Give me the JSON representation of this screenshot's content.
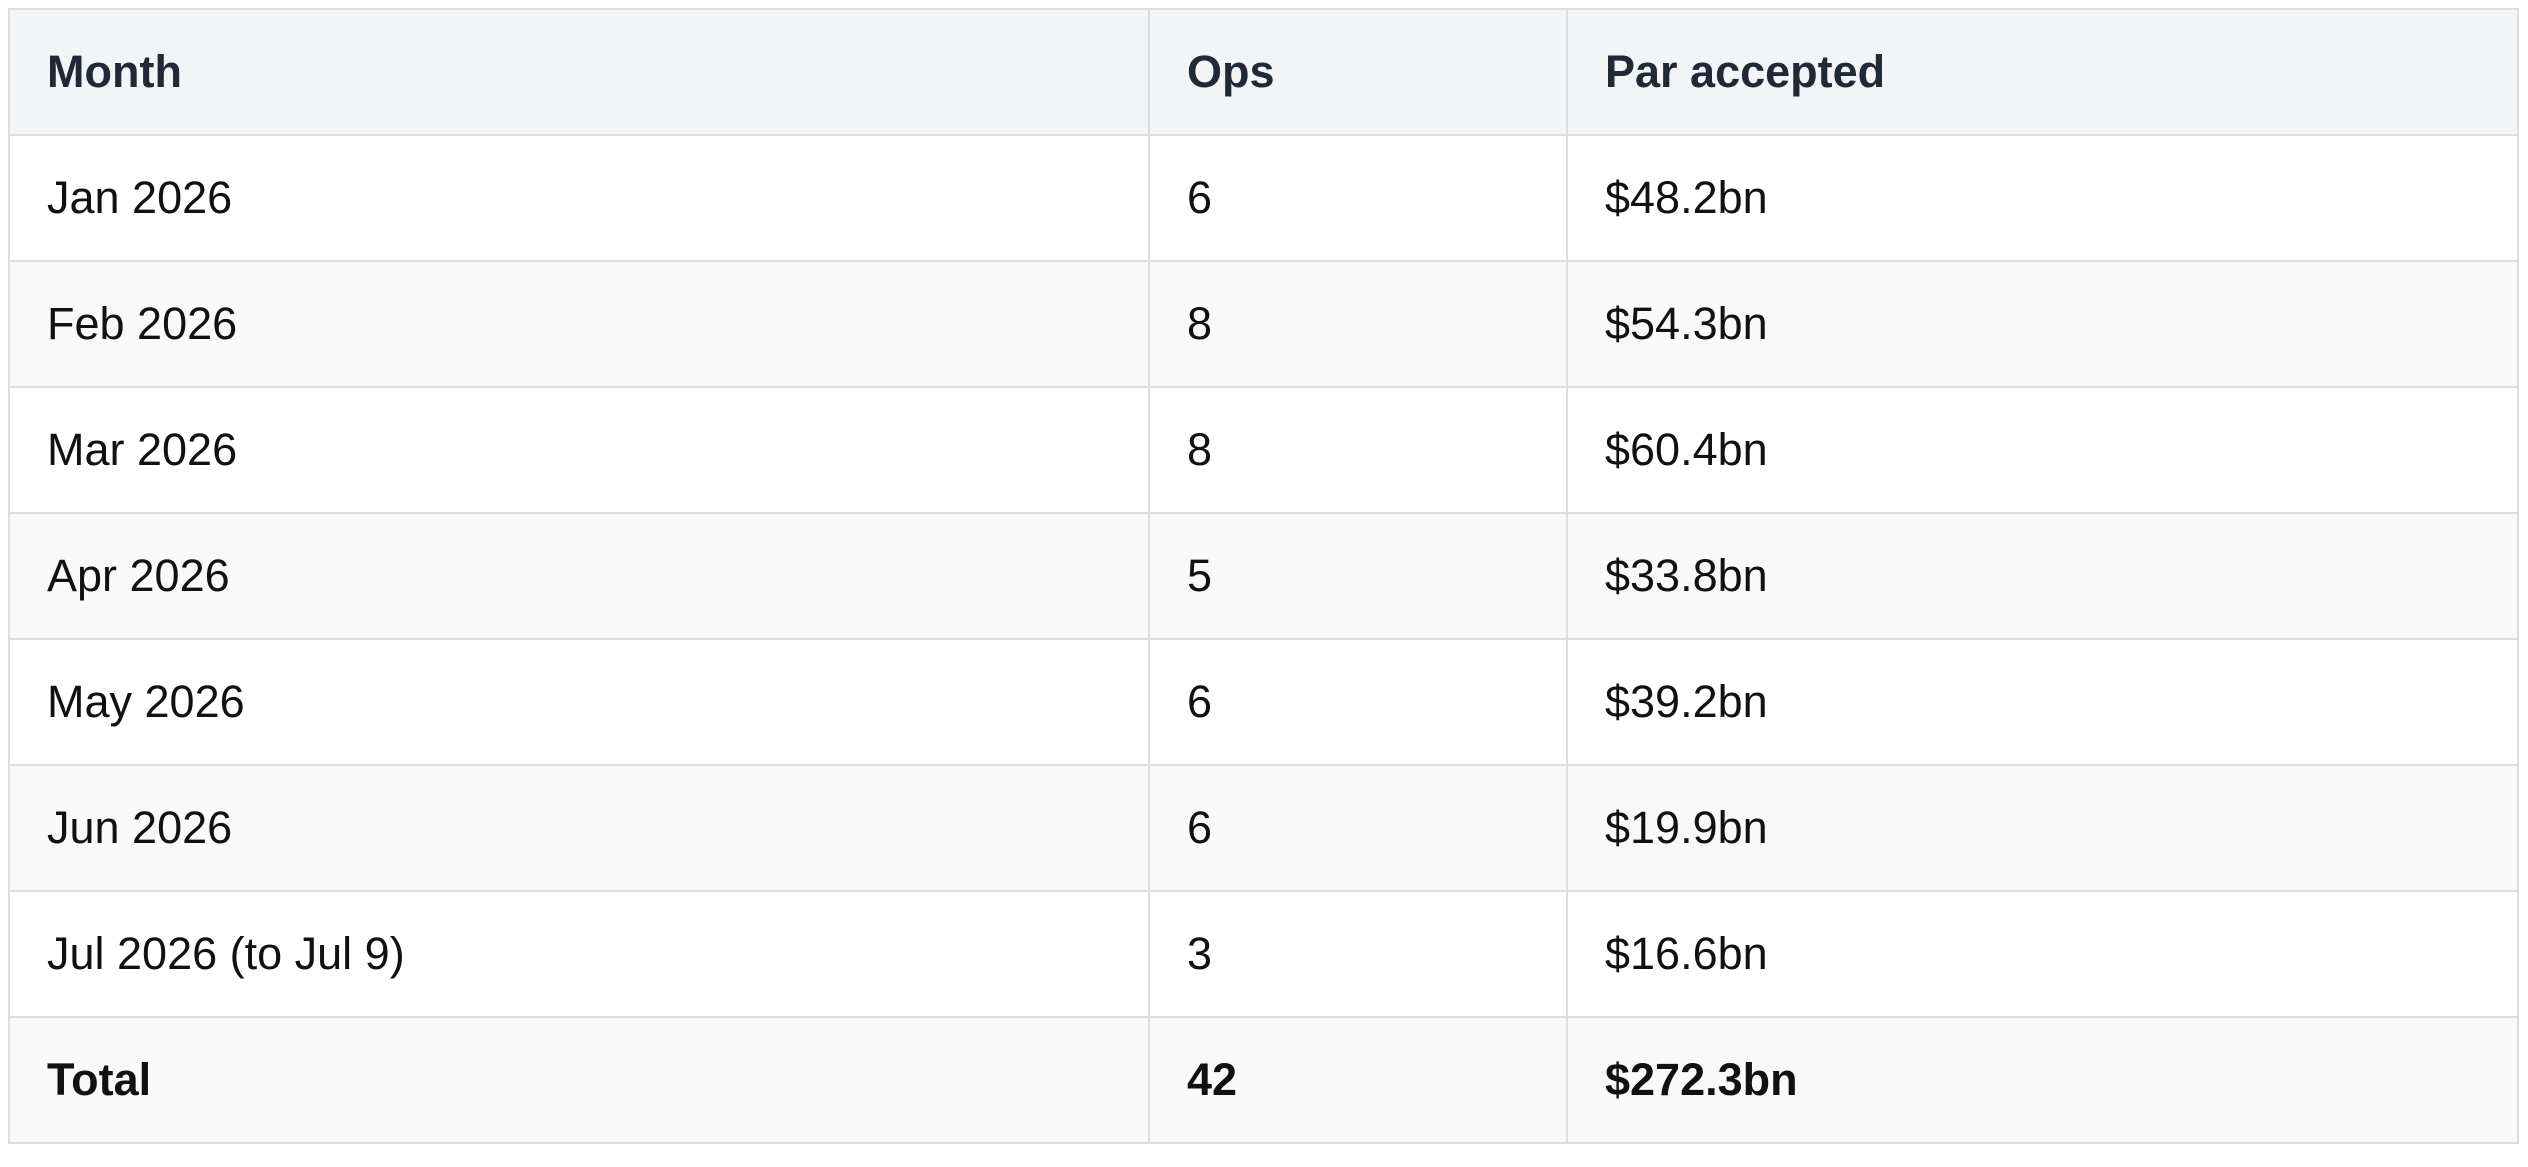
{
  "table": {
    "header": [
      "Month",
      "Ops",
      "Par accepted"
    ],
    "rows": [
      [
        "Jan 2026",
        "6",
        "$48.2bn"
      ],
      [
        "Feb 2026",
        "8",
        "$54.3bn"
      ],
      [
        "Mar 2026",
        "8",
        "$60.4bn"
      ],
      [
        "Apr 2026",
        "5",
        "$33.8bn"
      ],
      [
        "May 2026",
        "6",
        "$39.2bn"
      ],
      [
        "Jun 2026",
        "6",
        "$19.9bn"
      ],
      [
        "Jul 2026 (to Jul 9)",
        "3",
        "$16.6bn"
      ]
    ],
    "total": [
      "Total",
      "42",
      "$272.3bn"
    ]
  }
}
